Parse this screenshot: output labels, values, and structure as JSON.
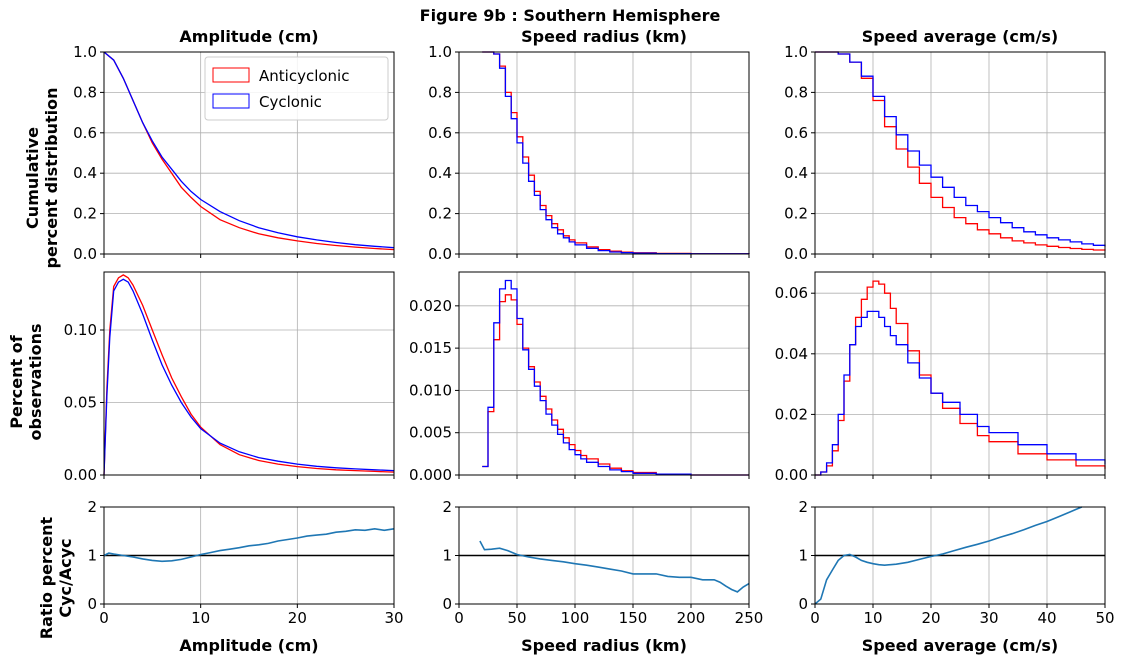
{
  "figure_title": "Figure 9b : Southern Hemisphere",
  "colors": {
    "anticyclonic": "#ff0000",
    "cyclonic": "#0000ff",
    "ratio": "#1f77b4",
    "grid": "#b0b0b0",
    "reference_line": "#000000"
  },
  "legend": {
    "placement": "upper-right of first panel",
    "entries": [
      "Anticyclonic",
      "Cyclonic"
    ]
  },
  "row_labels": {
    "cumulative": [
      "Cumulative",
      "percent distribution"
    ],
    "percent": [
      "Percent of",
      "observations"
    ],
    "ratio": [
      "Ratio percent",
      "Cyc/Acyc"
    ]
  },
  "chart_data": [
    {
      "id": "amplitude",
      "title": "Amplitude (cm)",
      "xlabel": "Amplitude (cm)",
      "xlim": [
        0,
        30
      ],
      "xticks": [
        "0",
        "10",
        "20",
        "30"
      ],
      "cumulative": {
        "type": "line",
        "ylim": [
          0,
          1
        ],
        "yticks": [
          "0.0",
          "0.2",
          "0.4",
          "0.6",
          "0.8",
          "1.0"
        ],
        "grid": true,
        "x": [
          0,
          1,
          2,
          3,
          4,
          5,
          6,
          7,
          8,
          9,
          10,
          12,
          14,
          16,
          18,
          20,
          22,
          24,
          26,
          28,
          30
        ],
        "series": [
          {
            "name": "Anticyclonic",
            "values": [
              1.0,
              0.96,
              0.87,
              0.76,
              0.65,
              0.55,
              0.47,
              0.4,
              0.33,
              0.28,
              0.235,
              0.17,
              0.13,
              0.1,
              0.08,
              0.065,
              0.052,
              0.042,
              0.034,
              0.027,
              0.022
            ]
          },
          {
            "name": "Cyclonic",
            "values": [
              1.0,
              0.96,
              0.87,
              0.76,
              0.65,
              0.56,
              0.48,
              0.42,
              0.36,
              0.31,
              0.27,
              0.21,
              0.165,
              0.13,
              0.105,
              0.085,
              0.07,
              0.057,
              0.046,
              0.038,
              0.031
            ]
          }
        ]
      },
      "percent": {
        "type": "line",
        "ylim": [
          0,
          0.14
        ],
        "yticks": [
          "0.00",
          "0.05",
          "0.10"
        ],
        "ytick_values": [
          0,
          0.05,
          0.1
        ],
        "grid": true,
        "x": [
          0,
          0.3,
          0.6,
          1.0,
          1.5,
          2.0,
          2.5,
          3,
          4,
          5,
          6,
          7,
          8,
          9,
          10,
          12,
          14,
          16,
          18,
          20,
          22,
          24,
          26,
          28,
          30
        ],
        "series": [
          {
            "name": "Anticyclonic",
            "values": [
              0,
              0.06,
              0.1,
              0.13,
              0.136,
              0.138,
              0.136,
              0.131,
              0.117,
              0.1,
              0.083,
              0.067,
              0.054,
              0.042,
              0.033,
              0.021,
              0.014,
              0.01,
              0.0075,
              0.0058,
              0.0045,
              0.0036,
              0.003,
              0.0025,
              0.002
            ]
          },
          {
            "name": "Cyclonic",
            "values": [
              0,
              0.055,
              0.095,
              0.127,
              0.133,
              0.135,
              0.133,
              0.127,
              0.111,
              0.093,
              0.076,
              0.062,
              0.05,
              0.04,
              0.032,
              0.022,
              0.016,
              0.012,
              0.0095,
              0.0075,
              0.006,
              0.005,
              0.0042,
              0.0036,
              0.003
            ]
          }
        ]
      },
      "ratio": {
        "type": "line",
        "ylim": [
          0,
          2
        ],
        "yticks": [
          "0",
          "1",
          "2"
        ],
        "grid": true,
        "hline": 1,
        "x": [
          0,
          0.5,
          1,
          2,
          3,
          4,
          5,
          6,
          7,
          8,
          9,
          10,
          11,
          12,
          13,
          14,
          15,
          16,
          17,
          18,
          19,
          20,
          21,
          22,
          23,
          24,
          25,
          26,
          27,
          28,
          29,
          30
        ],
        "values": [
          1.0,
          1.05,
          1.03,
          1.0,
          0.97,
          0.93,
          0.9,
          0.88,
          0.89,
          0.92,
          0.97,
          1.02,
          1.06,
          1.1,
          1.13,
          1.16,
          1.2,
          1.22,
          1.25,
          1.3,
          1.33,
          1.36,
          1.4,
          1.42,
          1.44,
          1.48,
          1.5,
          1.53,
          1.52,
          1.55,
          1.52,
          1.55
        ]
      }
    },
    {
      "id": "speed_radius",
      "title": "Speed radius (km)",
      "xlabel": "Speed radius (km)",
      "xlim": [
        0,
        250
      ],
      "xticks": [
        "0",
        "50",
        "100",
        "150",
        "200",
        "250"
      ],
      "cumulative": {
        "type": "step",
        "ylim": [
          0,
          1
        ],
        "yticks": [
          "0.0",
          "0.2",
          "0.4",
          "0.6",
          "0.8",
          "1.0"
        ],
        "grid": true,
        "x": [
          20,
          25,
          30,
          35,
          40,
          45,
          50,
          55,
          60,
          65,
          70,
          75,
          80,
          85,
          90,
          95,
          100,
          110,
          120,
          130,
          140,
          150,
          170,
          200,
          250
        ],
        "series": [
          {
            "name": "Anticyclonic",
            "values": [
              1.0,
              1.0,
              0.99,
              0.93,
              0.8,
              0.7,
              0.58,
              0.48,
              0.39,
              0.31,
              0.24,
              0.19,
              0.15,
              0.12,
              0.09,
              0.07,
              0.055,
              0.035,
              0.022,
              0.014,
              0.009,
              0.006,
              0.003,
              0.001,
              0.0
            ]
          },
          {
            "name": "Cyclonic",
            "values": [
              1.0,
              1.0,
              0.99,
              0.92,
              0.78,
              0.67,
              0.55,
              0.45,
              0.36,
              0.29,
              0.22,
              0.17,
              0.13,
              0.1,
              0.08,
              0.06,
              0.045,
              0.028,
              0.017,
              0.01,
              0.007,
              0.004,
              0.002,
              0.001,
              0.0
            ]
          }
        ]
      },
      "percent": {
        "type": "step",
        "ylim": [
          0,
          0.024
        ],
        "yticks": [
          "0.000",
          "0.005",
          "0.010",
          "0.015",
          "0.020"
        ],
        "ytick_values": [
          0,
          0.005,
          0.01,
          0.015,
          0.02
        ],
        "grid": true,
        "x": [
          20,
          25,
          30,
          35,
          40,
          45,
          50,
          55,
          60,
          65,
          70,
          75,
          80,
          85,
          90,
          95,
          100,
          105,
          110,
          120,
          130,
          140,
          150,
          170,
          200,
          250
        ],
        "series": [
          {
            "name": "Anticyclonic",
            "values": [
              0.001,
              0.0075,
              0.016,
              0.0205,
              0.0213,
              0.0207,
              0.0178,
              0.015,
              0.0128,
              0.011,
              0.0093,
              0.0078,
              0.0065,
              0.0054,
              0.0044,
              0.0036,
              0.0029,
              0.0023,
              0.0019,
              0.0013,
              0.0008,
              0.0005,
              0.0003,
              0.0001,
              0.0,
              0.0
            ]
          },
          {
            "name": "Cyclonic",
            "values": [
              0.001,
              0.008,
              0.018,
              0.022,
              0.023,
              0.022,
              0.0185,
              0.0148,
              0.0125,
              0.0105,
              0.0088,
              0.0072,
              0.0059,
              0.0048,
              0.0038,
              0.003,
              0.0024,
              0.0019,
              0.0015,
              0.001,
              0.0006,
              0.0004,
              0.0002,
              0.0001,
              0.0,
              0.0
            ]
          }
        ]
      },
      "ratio": {
        "type": "line",
        "ylim": [
          0,
          2
        ],
        "yticks": [
          "0",
          "1",
          "2"
        ],
        "grid": true,
        "hline": 1,
        "x": [
          18,
          22,
          28,
          35,
          42,
          50,
          60,
          70,
          80,
          90,
          100,
          110,
          120,
          130,
          140,
          150,
          160,
          170,
          180,
          190,
          200,
          210,
          220,
          225,
          230,
          235,
          240,
          245,
          250
        ],
        "values": [
          1.3,
          1.12,
          1.13,
          1.15,
          1.1,
          1.02,
          0.97,
          0.93,
          0.9,
          0.87,
          0.83,
          0.8,
          0.76,
          0.72,
          0.68,
          0.62,
          0.62,
          0.62,
          0.57,
          0.55,
          0.55,
          0.5,
          0.5,
          0.45,
          0.37,
          0.3,
          0.25,
          0.35,
          0.42
        ]
      }
    },
    {
      "id": "speed_average",
      "title": "Speed average (cm/s)",
      "xlabel": "Speed average (cm/s)",
      "xlim": [
        0,
        50
      ],
      "xticks": [
        "0",
        "10",
        "20",
        "30",
        "40",
        "50"
      ],
      "cumulative": {
        "type": "step",
        "ylim": [
          0,
          1
        ],
        "yticks": [
          "0.0",
          "0.2",
          "0.4",
          "0.6",
          "0.8",
          "1.0"
        ],
        "grid": true,
        "x": [
          0,
          2,
          4,
          6,
          8,
          10,
          12,
          14,
          16,
          18,
          20,
          22,
          24,
          26,
          28,
          30,
          32,
          34,
          36,
          38,
          40,
          42,
          44,
          46,
          48,
          50
        ],
        "series": [
          {
            "name": "Anticyclonic",
            "values": [
              1.0,
              1.0,
              0.99,
              0.95,
              0.87,
              0.76,
              0.63,
              0.52,
              0.43,
              0.35,
              0.28,
              0.23,
              0.18,
              0.15,
              0.12,
              0.1,
              0.08,
              0.065,
              0.055,
              0.045,
              0.038,
              0.032,
              0.027,
              0.023,
              0.02,
              0.017
            ]
          },
          {
            "name": "Cyclonic",
            "values": [
              1.0,
              1.0,
              0.99,
              0.95,
              0.88,
              0.78,
              0.68,
              0.59,
              0.51,
              0.44,
              0.38,
              0.33,
              0.28,
              0.24,
              0.21,
              0.18,
              0.155,
              0.13,
              0.11,
              0.095,
              0.08,
              0.07,
              0.06,
              0.05,
              0.043,
              0.037
            ]
          }
        ]
      },
      "percent": {
        "type": "step",
        "ylim": [
          0,
          0.067
        ],
        "yticks": [
          "0.00",
          "0.02",
          "0.04",
          "0.06"
        ],
        "ytick_values": [
          0,
          0.02,
          0.04,
          0.06
        ],
        "grid": true,
        "x": [
          0,
          1,
          2,
          3,
          4,
          5,
          6,
          7,
          8,
          9,
          10,
          11,
          12,
          13,
          14,
          16,
          18,
          20,
          22,
          25,
          28,
          30,
          35,
          40,
          45,
          50
        ],
        "series": [
          {
            "name": "Anticyclonic",
            "values": [
              0,
              0.001,
              0.003,
              0.008,
              0.018,
              0.031,
              0.043,
              0.052,
              0.058,
              0.062,
              0.064,
              0.063,
              0.06,
              0.055,
              0.05,
              0.041,
              0.033,
              0.027,
              0.022,
              0.017,
              0.013,
              0.011,
              0.007,
              0.005,
              0.003,
              0.002
            ]
          },
          {
            "name": "Cyclonic",
            "values": [
              0,
              0.001,
              0.004,
              0.01,
              0.02,
              0.033,
              0.043,
              0.049,
              0.052,
              0.054,
              0.054,
              0.052,
              0.049,
              0.046,
              0.043,
              0.037,
              0.032,
              0.027,
              0.024,
              0.02,
              0.016,
              0.014,
              0.01,
              0.007,
              0.005,
              0.0035
            ]
          }
        ]
      },
      "ratio": {
        "type": "line",
        "ylim": [
          0,
          2
        ],
        "yticks": [
          "0",
          "1",
          "2"
        ],
        "grid": true,
        "hline": 1,
        "x": [
          0,
          1,
          2,
          3,
          4,
          5,
          6,
          7,
          8,
          9,
          10,
          11,
          12,
          14,
          16,
          18,
          20,
          22,
          24,
          26,
          28,
          30,
          32,
          34,
          36,
          38,
          40,
          42,
          44,
          45,
          46
        ],
        "values": [
          0.0,
          0.1,
          0.5,
          0.7,
          0.9,
          1.0,
          1.02,
          0.97,
          0.9,
          0.86,
          0.83,
          0.81,
          0.8,
          0.82,
          0.86,
          0.92,
          0.98,
          1.03,
          1.1,
          1.17,
          1.23,
          1.3,
          1.38,
          1.45,
          1.53,
          1.62,
          1.7,
          1.8,
          1.9,
          1.95,
          2.0
        ]
      }
    }
  ]
}
